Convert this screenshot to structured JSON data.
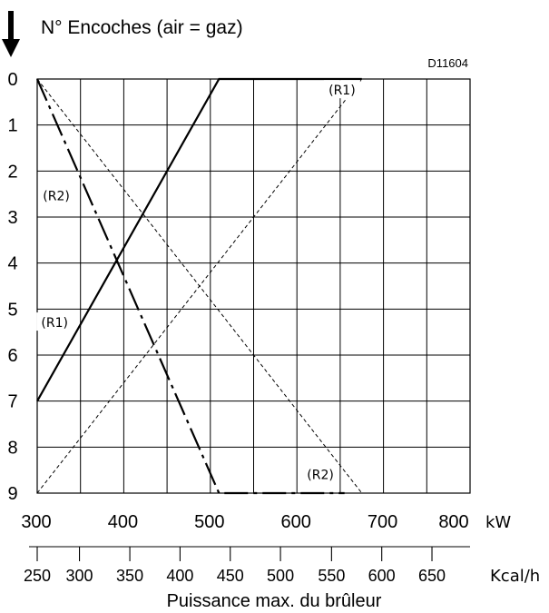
{
  "chart_data": {
    "type": "line",
    "title": "N° Encoches (air = gaz)",
    "xlabel": "Puissance max. du brûleur",
    "figure_code": "D11604",
    "y_axis": {
      "range": [
        0,
        9
      ],
      "ticks": [
        "0",
        "1",
        "2",
        "3",
        "4",
        "5",
        "6",
        "7",
        "8",
        "9"
      ],
      "inverted": true
    },
    "x_axis_kw": {
      "range": [
        300,
        800
      ],
      "ticks": [
        {
          "value": 300,
          "label": "300"
        },
        {
          "value": 400,
          "label": "400"
        },
        {
          "value": 500,
          "label": "500"
        },
        {
          "value": 600,
          "label": "600"
        },
        {
          "value": 700,
          "label": "700"
        },
        {
          "value": 800,
          "label": "800"
        }
      ],
      "unit": "kW"
    },
    "x_axis_kcal": {
      "ticks": [
        {
          "label": "250",
          "kw": 300
        },
        {
          "label": "300",
          "kw": 348.8
        },
        {
          "label": "350",
          "kw": 407
        },
        {
          "label": "400",
          "kw": 465
        },
        {
          "label": "450",
          "kw": 523
        },
        {
          "label": "500",
          "kw": 581
        },
        {
          "label": "550",
          "kw": 640
        },
        {
          "label": "600",
          "kw": 698
        },
        {
          "label": "650",
          "kw": 756
        }
      ],
      "unit": "Kcal/h"
    },
    "grid": true,
    "series": [
      {
        "name": "(R1)",
        "style": "solid",
        "points": [
          [
            300,
            7
          ],
          [
            510,
            0
          ],
          [
            675,
            0
          ]
        ]
      },
      {
        "name": "(R2)",
        "style": "dash-dot",
        "points": [
          [
            300,
            0
          ],
          [
            510,
            9
          ],
          [
            655,
            9
          ]
        ]
      },
      {
        "name": "",
        "style": "dashed-thin",
        "points": [
          [
            300,
            9
          ],
          [
            675,
            0
          ]
        ]
      },
      {
        "name": "",
        "style": "dashed-thin",
        "points": [
          [
            300,
            0
          ],
          [
            675,
            9
          ]
        ]
      },
      {
        "name": "",
        "style": "dashed-thin",
        "points": [
          [
            300,
            7
          ],
          [
            300,
            9
          ]
        ]
      }
    ],
    "annotations": [
      {
        "text": "(R1)",
        "x": 650,
        "y": 0.3
      },
      {
        "text": "(R2)",
        "x": 320,
        "y": 2.6
      },
      {
        "text": "(R1)",
        "x": 318,
        "y": 5.35
      },
      {
        "text": "(R2)",
        "x": 625,
        "y": 8.65
      }
    ]
  }
}
